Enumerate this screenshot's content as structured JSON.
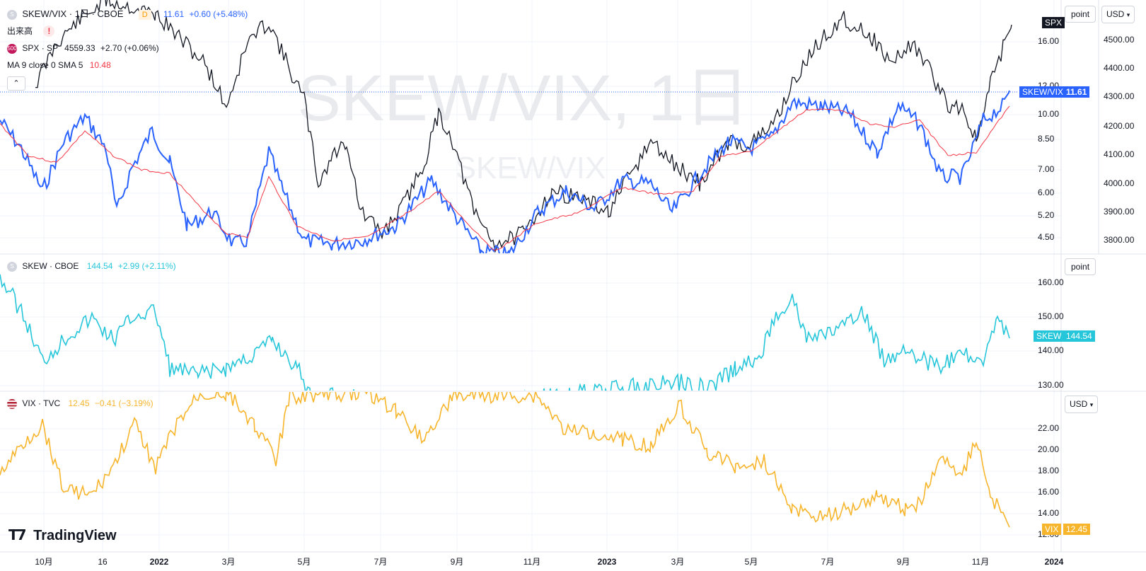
{
  "pane1": {
    "legend": {
      "symbol": "SKEW/VIX · 1日 · CBOE",
      "interval_badge": "D",
      "value": "11.61",
      "change": "+0.60 (+5.48%)",
      "volume_label": "出来高",
      "spx_icon": "500",
      "spx_label": "SPX · SP",
      "spx_value": "4559.33",
      "spx_change": "+2.70 (+0.06%)",
      "ma_label": "MA 9 close 0 SMA 5",
      "ma_value": "10.48"
    },
    "watermark_big": "SKEW/VIX, 1日",
    "watermark_small": "SKEW/VIX",
    "right_axis_ticks": [
      "16.00",
      "12.00",
      "10.00",
      "8.50",
      "7.00",
      "6.00",
      "5.20",
      "4.50"
    ],
    "spx_axis_ticks": [
      "4500.00",
      "4400.00",
      "4300.00",
      "4200.00",
      "4100.00",
      "4000.00",
      "3900.00",
      "3800.00"
    ],
    "scale_button": "point",
    "currency_button": "USD",
    "spx_tag": "SPX",
    "ratio_tag_label": "SKEW/VIX",
    "ratio_tag_value": "11.61"
  },
  "pane2": {
    "legend": {
      "symbol": "SKEW · CBOE",
      "value": "144.54",
      "change": "+2.99 (+2.11%)"
    },
    "axis_ticks": [
      "160.00",
      "150.00",
      "140.00",
      "130.00"
    ],
    "scale_button": "point",
    "tag_label": "SKEW",
    "tag_value": "144.54"
  },
  "pane3": {
    "legend": {
      "symbol": "VIX · TVC",
      "value": "12.45",
      "change": "−0.41 (−3.19%)"
    },
    "axis_ticks": [
      "22.00",
      "20.00",
      "18.00",
      "16.00",
      "14.00",
      "12.00"
    ],
    "currency_button": "USD",
    "tag_label": "VIX",
    "tag_value": "12.45"
  },
  "time_axis": [
    "10月",
    "16",
    "2022",
    "3月",
    "5月",
    "7月",
    "9月",
    "11月",
    "2023",
    "3月",
    "5月",
    "7月",
    "9月",
    "11月",
    "2024"
  ],
  "logo_text": "TradingView",
  "colors": {
    "ratio": "#2962ff",
    "ma": "#f23645",
    "spx": "#131722",
    "skew": "#26c6da",
    "vix": "#f7b52c"
  }
}
